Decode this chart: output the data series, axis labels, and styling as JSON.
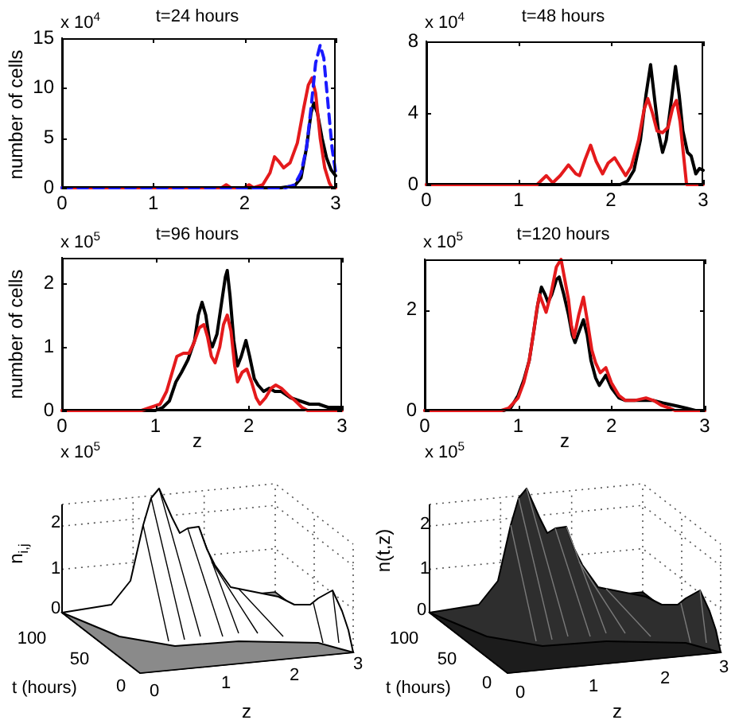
{
  "chart_data": [
    {
      "type": "line",
      "title": "t=24 hours",
      "ylabel": "number of cells",
      "annotations": [
        "x 10$^{4}$"
      ],
      "xlim": [
        0,
        3
      ],
      "xticks": [
        0,
        1,
        2,
        3
      ],
      "ylim": [
        0,
        15
      ],
      "yticks": [
        0,
        5,
        10,
        15
      ],
      "series": [
        {
          "color": "#000000",
          "x": [
            0,
            2.4,
            2.55,
            2.62,
            2.68,
            2.73,
            2.76,
            2.8,
            2.85,
            2.9,
            2.95,
            3
          ],
          "values": [
            0,
            0,
            0.2,
            1,
            4,
            7.5,
            8.5,
            7.5,
            5,
            3,
            1.8,
            1.2
          ]
        },
        {
          "color": "#e41a1c",
          "x": [
            0,
            1.75,
            1.8,
            1.85,
            2,
            2.05,
            2.1,
            2.2,
            2.28,
            2.33,
            2.38,
            2.43,
            2.5,
            2.58,
            2.65,
            2.7,
            2.74,
            2.78,
            2.83,
            2.88,
            2.93,
            2.96,
            3
          ],
          "values": [
            0,
            0,
            0.3,
            0,
            0,
            0.3,
            0,
            0.3,
            1.5,
            3.1,
            2.6,
            2,
            2.5,
            4.5,
            8,
            10.3,
            11,
            9.5,
            5,
            2,
            0.5,
            0,
            0
          ]
        },
        {
          "color": "#1a1aff",
          "line_style": "dashed",
          "x": [
            0,
            2.45,
            2.55,
            2.62,
            2.68,
            2.73,
            2.78,
            2.83,
            2.87,
            2.92,
            2.96,
            3
          ],
          "values": [
            0,
            0,
            0.3,
            1.5,
            4,
            8,
            12.5,
            14.3,
            13,
            8,
            4,
            1.5
          ]
        }
      ]
    },
    {
      "type": "line",
      "title": "t=48 hours",
      "annotations": [
        "x 10$^{4}$"
      ],
      "xlim": [
        0,
        3
      ],
      "xticks": [
        0,
        1,
        2,
        3
      ],
      "ylim": [
        0,
        8
      ],
      "yticks": [
        0,
        4,
        8
      ],
      "series": [
        {
          "color": "#000000",
          "x": [
            0,
            2.1,
            2.18,
            2.25,
            2.32,
            2.38,
            2.43,
            2.48,
            2.52,
            2.56,
            2.6,
            2.65,
            2.7,
            2.74,
            2.78,
            2.83,
            2.87,
            2.92,
            2.96,
            3
          ],
          "values": [
            0,
            0,
            0.2,
            0.8,
            2.5,
            5,
            6.7,
            4.5,
            2.8,
            1.8,
            2.5,
            4.5,
            6.6,
            5,
            3,
            1.8,
            1.6,
            0.6,
            0.9,
            0.8
          ]
        },
        {
          "color": "#e41a1c",
          "x": [
            0,
            1.2,
            1.3,
            1.37,
            1.45,
            1.54,
            1.62,
            1.66,
            1.72,
            1.78,
            1.84,
            1.91,
            1.97,
            2.04,
            2.1,
            2.16,
            2.22,
            2.3,
            2.36,
            2.4,
            2.45,
            2.5,
            2.56,
            2.62,
            2.67,
            2.71,
            2.75,
            2.79,
            2.82,
            3
          ],
          "values": [
            0,
            0,
            0.5,
            0.1,
            0.5,
            1.1,
            0.6,
            0.5,
            1.4,
            2.2,
            1.3,
            0.6,
            1.2,
            1.5,
            1,
            0.5,
            1,
            2.5,
            4.2,
            4.8,
            4,
            3,
            2.9,
            3.2,
            4.3,
            4.7,
            3.5,
            1.5,
            0,
            0
          ]
        }
      ]
    },
    {
      "type": "line",
      "title": "t=96 hours",
      "xlabel": "z",
      "ylabel": "number of cells",
      "annotations": [
        "x 10$^{5}$"
      ],
      "xlim": [
        0,
        3
      ],
      "xticks": [
        0,
        1,
        2,
        3
      ],
      "ylim": [
        0,
        2.4
      ],
      "yticks": [
        0,
        1,
        2
      ],
      "series": [
        {
          "color": "#000000",
          "x": [
            0,
            1.0,
            1.08,
            1.15,
            1.22,
            1.28,
            1.35,
            1.42,
            1.46,
            1.5,
            1.54,
            1.58,
            1.61,
            1.66,
            1.71,
            1.75,
            1.77,
            1.8,
            1.84,
            1.88,
            1.92,
            1.97,
            2.01,
            2.06,
            2.1,
            2.16,
            2.22,
            2.28,
            2.35,
            2.45,
            2.55,
            2.65,
            2.75,
            2.85,
            2.95,
            3
          ],
          "values": [
            0,
            0,
            0.05,
            0.15,
            0.45,
            0.6,
            0.8,
            1.1,
            1.5,
            1.7,
            1.5,
            1.1,
            1,
            1.2,
            1.7,
            2.1,
            2.2,
            1.8,
            1.1,
            0.7,
            0.85,
            1.1,
            0.85,
            0.5,
            0.4,
            0.3,
            0.35,
            0.3,
            0.3,
            0.2,
            0.15,
            0.1,
            0.1,
            0.05,
            0.05,
            0.05
          ]
        },
        {
          "color": "#e41a1c",
          "x": [
            0,
            0.85,
            0.95,
            1.05,
            1.12,
            1.18,
            1.23,
            1.3,
            1.36,
            1.41,
            1.47,
            1.52,
            1.56,
            1.6,
            1.64,
            1.69,
            1.73,
            1.77,
            1.81,
            1.85,
            1.88,
            1.93,
            1.98,
            2.03,
            2.08,
            2.12,
            2.18,
            2.24,
            2.29,
            2.35,
            2.42,
            2.5,
            2.57,
            2.63,
            2.7,
            3
          ],
          "values": [
            0,
            0,
            0.05,
            0.1,
            0.3,
            0.6,
            0.85,
            0.9,
            0.9,
            1.05,
            1.3,
            1.35,
            1.15,
            0.85,
            0.75,
            1,
            1.35,
            1.5,
            1.25,
            0.7,
            0.45,
            0.6,
            0.65,
            0.45,
            0.2,
            0.1,
            0.2,
            0.35,
            0.4,
            0.35,
            0.25,
            0.15,
            0.05,
            0,
            0,
            0
          ]
        }
      ]
    },
    {
      "type": "line",
      "title": "t=120 hours",
      "xlabel": "z",
      "annotations": [
        "x 10$^{5}$"
      ],
      "xlim": [
        0,
        3
      ],
      "xticks": [
        0,
        1,
        2,
        3
      ],
      "ylim": [
        0,
        3
      ],
      "yticks": [
        0,
        2
      ],
      "series": [
        {
          "color": "#000000",
          "x": [
            0,
            0.85,
            0.92,
            1.0,
            1.06,
            1.12,
            1.17,
            1.21,
            1.25,
            1.29,
            1.32,
            1.36,
            1.41,
            1.44,
            1.49,
            1.54,
            1.58,
            1.61,
            1.66,
            1.7,
            1.74,
            1.78,
            1.83,
            1.87,
            1.94,
            2.0,
            2.08,
            2.15,
            2.3,
            2.45,
            2.55,
            2.68,
            2.8,
            2.9,
            3
          ],
          "values": [
            0,
            0,
            0.05,
            0.3,
            0.6,
            1,
            1.6,
            2.1,
            2.45,
            2.3,
            2.15,
            2.3,
            2.6,
            2.65,
            2.3,
            1.9,
            1.5,
            1.35,
            1.6,
            1.8,
            1.5,
            1,
            0.65,
            0.5,
            0.7,
            0.45,
            0.25,
            0.2,
            0.2,
            0.2,
            0.15,
            0.1,
            0.05,
            0,
            0
          ]
        },
        {
          "color": "#e41a1c",
          "x": [
            0,
            0.82,
            0.9,
            1.0,
            1.06,
            1.12,
            1.17,
            1.2,
            1.23,
            1.27,
            1.3,
            1.35,
            1.41,
            1.46,
            1.5,
            1.54,
            1.57,
            1.6,
            1.65,
            1.7,
            1.74,
            1.79,
            1.83,
            1.88,
            1.94,
            2.0,
            2.08,
            2.15,
            2.25,
            2.37,
            2.45,
            2.54,
            2.62,
            2.68,
            3
          ],
          "values": [
            0,
            0,
            0.05,
            0.25,
            0.55,
            1,
            1.6,
            2,
            2.3,
            2.1,
            1.95,
            2.3,
            2.85,
            3,
            2.6,
            2.2,
            1.7,
            1.45,
            1.9,
            2.25,
            1.8,
            1.2,
            0.95,
            0.75,
            0.85,
            0.55,
            0.3,
            0.2,
            0.2,
            0.25,
            0.2,
            0.1,
            0.05,
            0,
            0
          ]
        }
      ]
    },
    {
      "type": "other",
      "xlabel": "z",
      "ylabel": "n$_{i,j}$",
      "annotations": [
        "x 10$^{5}$",
        "t (hours)",
        "100",
        "50",
        "0",
        "0",
        "1",
        "2",
        "3",
        "2",
        "1",
        "0"
      ]
    },
    {
      "type": "other",
      "xlabel": "z",
      "ylabel": "n(t,z)",
      "annotations": [
        "x 10$^{5}$",
        "t (hours)",
        "100",
        "50",
        "0",
        "0",
        "1",
        "2",
        "3",
        "2",
        "1",
        "0"
      ]
    }
  ]
}
